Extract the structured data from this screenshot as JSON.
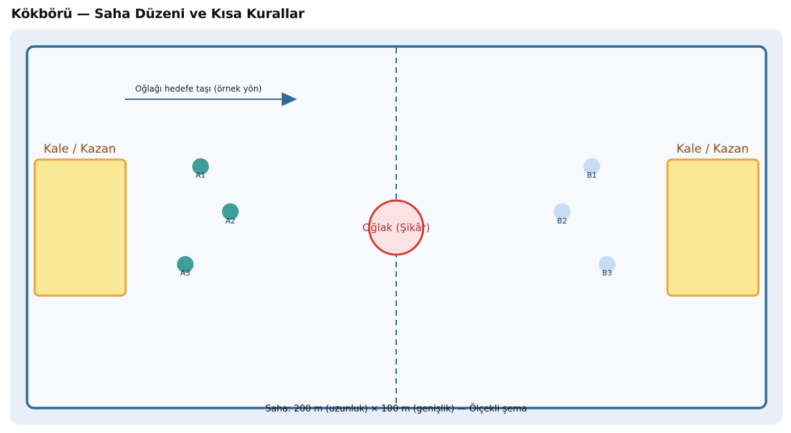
{
  "page": {
    "title": "Kökbörü — Saha Düzeni ve Kısa Kurallar"
  },
  "field": {
    "direction_label": "Oğlağı hedefe taşı (örnek yön)",
    "goal_left_label": "Kale / Kazan",
    "goal_right_label": "Kale / Kazan",
    "center_label": "Oğlak (Şikâr)",
    "caption": "Saha: 200 m (uzunluk) × 100 m (genişlik) — Ölçekli şema"
  },
  "team_a": {
    "color": "#3f9e9a",
    "players": [
      {
        "label": "A1"
      },
      {
        "label": "A2"
      },
      {
        "label": "A3"
      }
    ]
  },
  "team_b": {
    "color": "#c9dcf5",
    "players": [
      {
        "label": "B1"
      },
      {
        "label": "B2"
      },
      {
        "label": "B3"
      }
    ]
  },
  "colors": {
    "field_border": "#2f6b9a",
    "goal_fill": "#fae896",
    "goal_stroke": "#e8a83a",
    "goal_label": "#8a4b1e",
    "center_fill": "#fbe3e3",
    "center_stroke": "#d23b33",
    "center_label": "#b03030",
    "arrow": "#2f6b9a"
  }
}
